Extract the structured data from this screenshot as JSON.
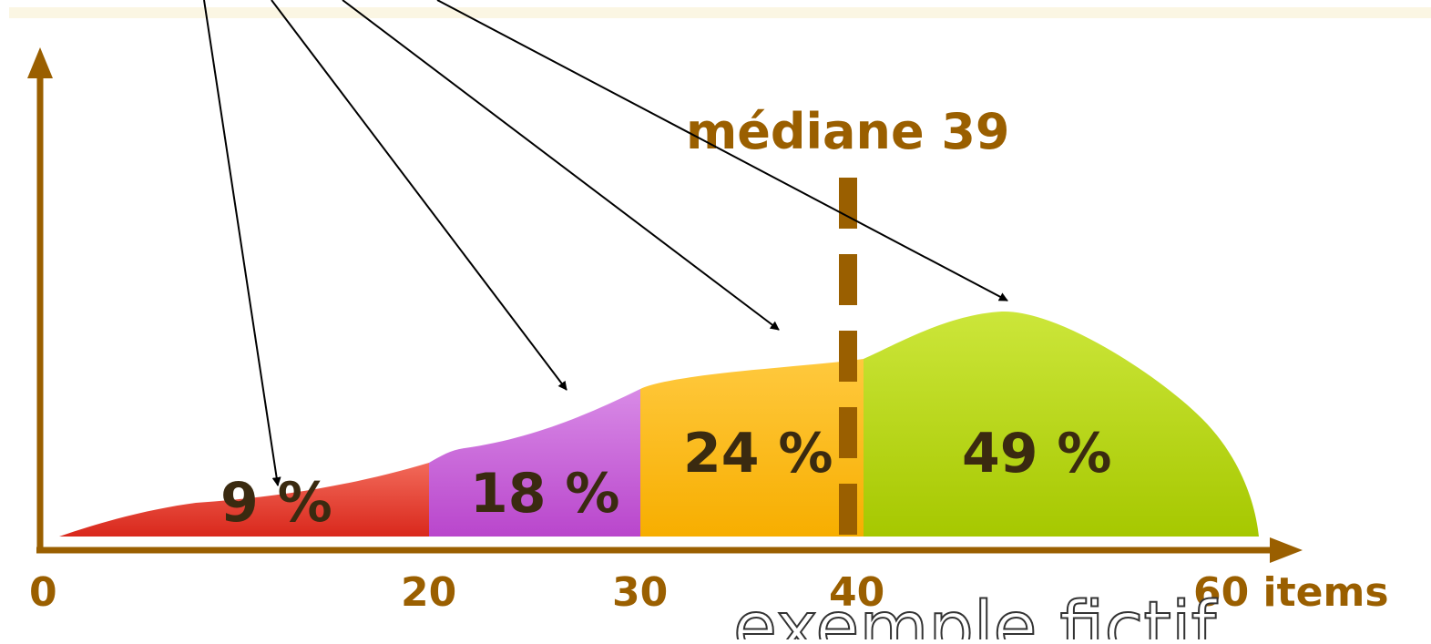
{
  "chart_data": {
    "type": "area",
    "x_ticks": [
      "0",
      "20",
      "30",
      "40",
      "60 items"
    ],
    "segments": [
      {
        "range": [
          0,
          20
        ],
        "label": "9 %",
        "color": "#e0382a"
      },
      {
        "range": [
          20,
          30
        ],
        "label": "18 %",
        "color": "#b84fd0"
      },
      {
        "range": [
          30,
          40
        ],
        "label": "24 %",
        "color": "#f7b20a"
      },
      {
        "range": [
          40,
          60
        ],
        "label": "49 %",
        "color": "#a8cc10"
      }
    ],
    "median": {
      "value": 39,
      "label": "médiane 39",
      "color": "#9a5f00"
    },
    "annotation": "exemple fictif",
    "axis_color": "#9a5f00",
    "xlim": [
      0,
      60
    ]
  }
}
